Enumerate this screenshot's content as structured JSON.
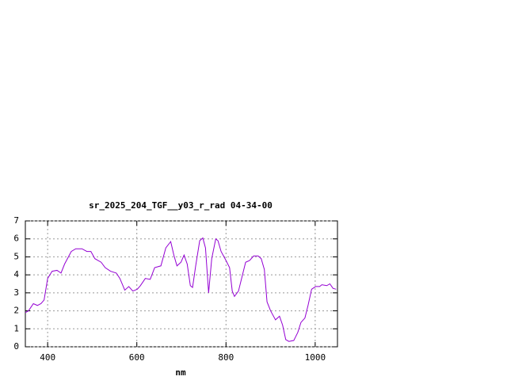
{
  "chart_data": {
    "type": "line",
    "title": "sr_2025_204_TGF__y03_r_rad 04-34-00",
    "x_label": "nm",
    "x": [
      350,
      357,
      368,
      377,
      385,
      392,
      400,
      410,
      421,
      430,
      438,
      453,
      463,
      477,
      488,
      497,
      506,
      520,
      529,
      541,
      554,
      562,
      573,
      582,
      591,
      601,
      608,
      619,
      630,
      640,
      654,
      665,
      676,
      683,
      690,
      699,
      706,
      713,
      720,
      725,
      732,
      741,
      748,
      754,
      761,
      768,
      777,
      782,
      789,
      800,
      808,
      814,
      819,
      828,
      837,
      844,
      853,
      862,
      872,
      879,
      886,
      892,
      900,
      911,
      920,
      927,
      934,
      941,
      952,
      961,
      968,
      977,
      984,
      992,
      1001,
      1010,
      1015,
      1026,
      1033,
      1040,
      1047
    ],
    "series": [
      {
        "color": "#9400d3",
        "values": [
          1.9,
          2.0,
          2.4,
          2.3,
          2.4,
          2.6,
          3.8,
          4.2,
          4.25,
          4.1,
          4.6,
          5.3,
          5.45,
          5.45,
          5.3,
          5.3,
          4.9,
          4.7,
          4.4,
          4.2,
          4.1,
          3.8,
          3.15,
          3.35,
          3.1,
          3.2,
          3.4,
          3.8,
          3.75,
          4.4,
          4.5,
          5.5,
          5.85,
          5.1,
          4.5,
          4.7,
          5.1,
          4.6,
          3.4,
          3.3,
          4.5,
          5.9,
          6.05,
          5.5,
          3.0,
          4.9,
          6.0,
          5.9,
          5.3,
          4.8,
          4.4,
          3.1,
          2.8,
          3.1,
          4.0,
          4.7,
          4.8,
          5.05,
          5.05,
          4.9,
          4.3,
          2.5,
          2.0,
          1.5,
          1.7,
          1.2,
          0.4,
          0.3,
          0.35,
          0.8,
          1.35,
          1.6,
          2.3,
          3.2,
          3.35,
          3.35,
          3.45,
          3.4,
          3.5,
          3.25,
          3.2
        ]
      }
    ],
    "xlim": [
      350,
      1050
    ],
    "ylim": [
      0,
      7
    ],
    "xticks": [
      400,
      600,
      800,
      1000
    ],
    "yticks": [
      0,
      1,
      2,
      3,
      4,
      5,
      6,
      7
    ],
    "grid": true
  }
}
